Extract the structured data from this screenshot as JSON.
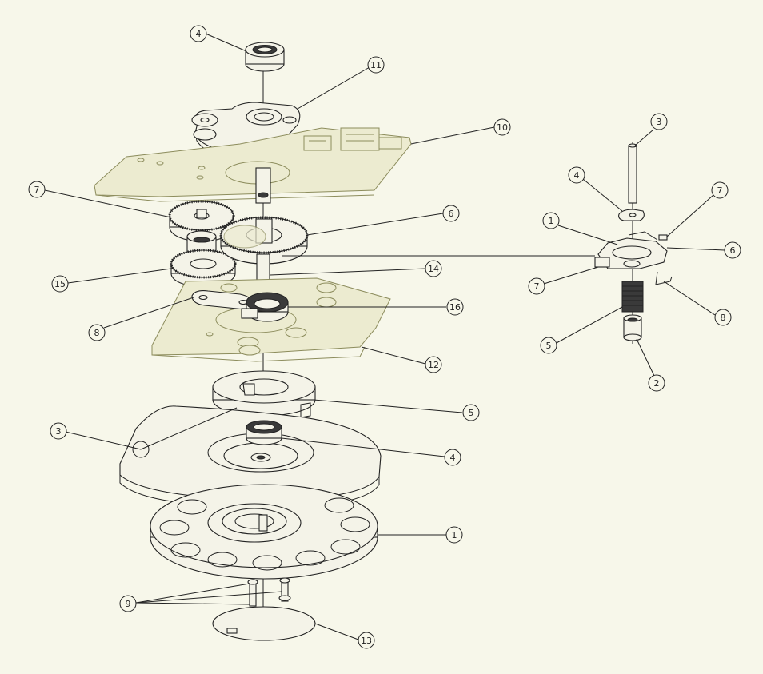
{
  "drawing": {
    "background": "#f7f7ea",
    "line_color": "#222222",
    "ghost_color": "#8c8c5c"
  },
  "callouts": {
    "main_4_top": "4",
    "main_11": "11",
    "main_10": "10",
    "main_7": "7",
    "main_6": "6",
    "main_14": "14",
    "main_15": "15",
    "main_16": "16",
    "main_8": "8",
    "main_12": "12",
    "main_5": "5",
    "main_3": "3",
    "main_4_low": "4",
    "main_1": "1",
    "main_9": "9",
    "main_13": "13",
    "sub_3": "3",
    "sub_4": "4",
    "sub_7_top": "7",
    "sub_1": "1",
    "sub_6": "6",
    "sub_7_low": "7",
    "sub_8": "8",
    "sub_5": "5",
    "sub_2": "2"
  }
}
